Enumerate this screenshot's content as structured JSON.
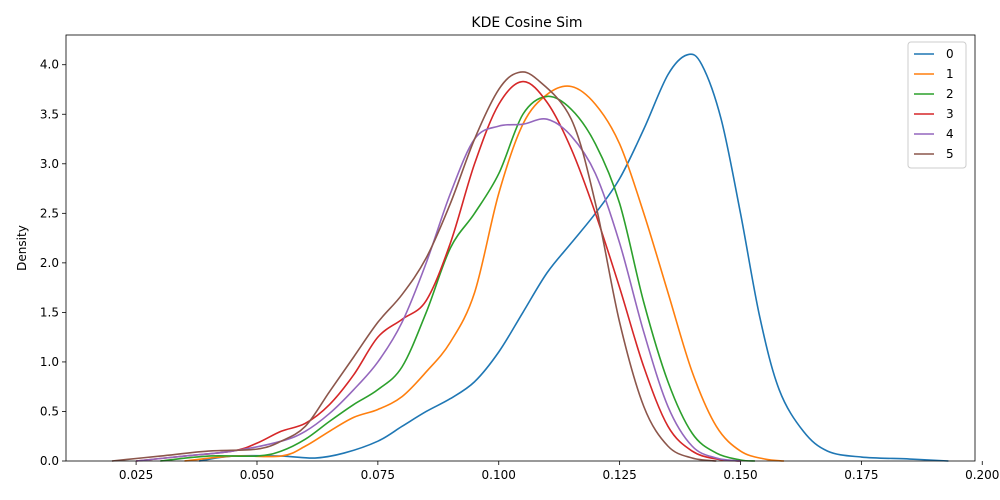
{
  "chart_data": {
    "type": "line",
    "title": "KDE Cosine Sim",
    "xlabel": "",
    "ylabel": "Density",
    "xlim": [
      0.0105,
      0.1985
    ],
    "ylim": [
      0.0,
      4.3
    ],
    "grid": false,
    "legend_position": "top-right",
    "x_ticks": [
      0.025,
      0.05,
      0.075,
      0.1,
      0.125,
      0.15,
      0.175,
      0.2
    ],
    "x_tick_labels": [
      "0.025",
      "0.050",
      "0.075",
      "0.100",
      "0.125",
      "0.150",
      "0.175",
      "0.200"
    ],
    "y_ticks": [
      0.0,
      0.5,
      1.0,
      1.5,
      2.0,
      2.5,
      3.0,
      3.5,
      4.0
    ],
    "y_tick_labels": [
      "0.0",
      "0.5",
      "1.0",
      "1.5",
      "2.0",
      "2.5",
      "3.0",
      "3.5",
      "4.0"
    ],
    "series": [
      {
        "name": "0",
        "color": "#1f77b4",
        "points": [
          [
            0.038,
            0.0
          ],
          [
            0.045,
            0.05
          ],
          [
            0.055,
            0.05
          ],
          [
            0.062,
            0.03
          ],
          [
            0.068,
            0.08
          ],
          [
            0.075,
            0.2
          ],
          [
            0.08,
            0.35
          ],
          [
            0.085,
            0.5
          ],
          [
            0.09,
            0.63
          ],
          [
            0.095,
            0.8
          ],
          [
            0.1,
            1.1
          ],
          [
            0.105,
            1.5
          ],
          [
            0.11,
            1.9
          ],
          [
            0.115,
            2.2
          ],
          [
            0.12,
            2.5
          ],
          [
            0.125,
            2.85
          ],
          [
            0.13,
            3.35
          ],
          [
            0.135,
            3.9
          ],
          [
            0.139,
            4.1
          ],
          [
            0.142,
            4.0
          ],
          [
            0.146,
            3.45
          ],
          [
            0.15,
            2.5
          ],
          [
            0.154,
            1.45
          ],
          [
            0.158,
            0.72
          ],
          [
            0.163,
            0.3
          ],
          [
            0.168,
            0.1
          ],
          [
            0.175,
            0.04
          ],
          [
            0.185,
            0.02
          ],
          [
            0.193,
            0.0
          ]
        ]
      },
      {
        "name": "1",
        "color": "#ff7f0e",
        "points": [
          [
            0.035,
            0.0
          ],
          [
            0.045,
            0.05
          ],
          [
            0.055,
            0.05
          ],
          [
            0.06,
            0.15
          ],
          [
            0.065,
            0.3
          ],
          [
            0.07,
            0.44
          ],
          [
            0.075,
            0.52
          ],
          [
            0.08,
            0.65
          ],
          [
            0.085,
            0.9
          ],
          [
            0.09,
            1.2
          ],
          [
            0.095,
            1.7
          ],
          [
            0.1,
            2.7
          ],
          [
            0.105,
            3.4
          ],
          [
            0.11,
            3.7
          ],
          [
            0.115,
            3.78
          ],
          [
            0.12,
            3.6
          ],
          [
            0.125,
            3.2
          ],
          [
            0.13,
            2.5
          ],
          [
            0.135,
            1.7
          ],
          [
            0.14,
            0.9
          ],
          [
            0.145,
            0.35
          ],
          [
            0.15,
            0.1
          ],
          [
            0.155,
            0.02
          ],
          [
            0.159,
            0.0
          ]
        ]
      },
      {
        "name": "2",
        "color": "#2ca02c",
        "points": [
          [
            0.03,
            0.0
          ],
          [
            0.04,
            0.05
          ],
          [
            0.05,
            0.05
          ],
          [
            0.055,
            0.1
          ],
          [
            0.06,
            0.22
          ],
          [
            0.065,
            0.4
          ],
          [
            0.07,
            0.57
          ],
          [
            0.075,
            0.72
          ],
          [
            0.08,
            0.95
          ],
          [
            0.085,
            1.5
          ],
          [
            0.09,
            2.15
          ],
          [
            0.095,
            2.5
          ],
          [
            0.1,
            2.9
          ],
          [
            0.105,
            3.5
          ],
          [
            0.11,
            3.68
          ],
          [
            0.115,
            3.55
          ],
          [
            0.12,
            3.2
          ],
          [
            0.125,
            2.6
          ],
          [
            0.13,
            1.6
          ],
          [
            0.135,
            0.8
          ],
          [
            0.14,
            0.28
          ],
          [
            0.145,
            0.08
          ],
          [
            0.15,
            0.01
          ],
          [
            0.153,
            0.0
          ]
        ]
      },
      {
        "name": "3",
        "color": "#d62728",
        "points": [
          [
            0.025,
            0.0
          ],
          [
            0.035,
            0.05
          ],
          [
            0.045,
            0.1
          ],
          [
            0.05,
            0.18
          ],
          [
            0.055,
            0.3
          ],
          [
            0.06,
            0.38
          ],
          [
            0.065,
            0.57
          ],
          [
            0.07,
            0.87
          ],
          [
            0.075,
            1.25
          ],
          [
            0.08,
            1.43
          ],
          [
            0.085,
            1.62
          ],
          [
            0.09,
            2.2
          ],
          [
            0.095,
            3.0
          ],
          [
            0.1,
            3.6
          ],
          [
            0.105,
            3.83
          ],
          [
            0.11,
            3.62
          ],
          [
            0.115,
            3.15
          ],
          [
            0.12,
            2.5
          ],
          [
            0.125,
            1.75
          ],
          [
            0.13,
            0.95
          ],
          [
            0.135,
            0.35
          ],
          [
            0.14,
            0.1
          ],
          [
            0.145,
            0.02
          ],
          [
            0.15,
            0.0
          ]
        ]
      },
      {
        "name": "4",
        "color": "#9467bd",
        "points": [
          [
            0.025,
            0.0
          ],
          [
            0.035,
            0.05
          ],
          [
            0.045,
            0.1
          ],
          [
            0.055,
            0.2
          ],
          [
            0.06,
            0.3
          ],
          [
            0.065,
            0.48
          ],
          [
            0.07,
            0.72
          ],
          [
            0.075,
            1.0
          ],
          [
            0.08,
            1.4
          ],
          [
            0.085,
            2.0
          ],
          [
            0.09,
            2.7
          ],
          [
            0.095,
            3.25
          ],
          [
            0.1,
            3.38
          ],
          [
            0.105,
            3.4
          ],
          [
            0.11,
            3.45
          ],
          [
            0.115,
            3.28
          ],
          [
            0.12,
            2.9
          ],
          [
            0.125,
            2.2
          ],
          [
            0.13,
            1.3
          ],
          [
            0.135,
            0.55
          ],
          [
            0.14,
            0.15
          ],
          [
            0.145,
            0.03
          ],
          [
            0.15,
            0.0
          ]
        ]
      },
      {
        "name": "5",
        "color": "#8c564b",
        "points": [
          [
            0.02,
            0.0
          ],
          [
            0.03,
            0.05
          ],
          [
            0.04,
            0.1
          ],
          [
            0.05,
            0.12
          ],
          [
            0.055,
            0.2
          ],
          [
            0.06,
            0.35
          ],
          [
            0.065,
            0.7
          ],
          [
            0.07,
            1.05
          ],
          [
            0.075,
            1.4
          ],
          [
            0.08,
            1.68
          ],
          [
            0.085,
            2.05
          ],
          [
            0.09,
            2.6
          ],
          [
            0.095,
            3.25
          ],
          [
            0.1,
            3.75
          ],
          [
            0.104,
            3.92
          ],
          [
            0.108,
            3.85
          ],
          [
            0.115,
            3.45
          ],
          [
            0.12,
            2.6
          ],
          [
            0.125,
            1.4
          ],
          [
            0.13,
            0.55
          ],
          [
            0.135,
            0.15
          ],
          [
            0.14,
            0.03
          ],
          [
            0.145,
            0.0
          ]
        ]
      }
    ]
  }
}
